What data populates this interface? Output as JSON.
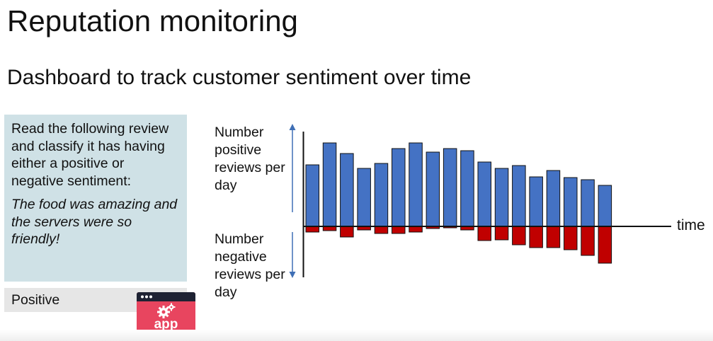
{
  "slide": {
    "title": "Reputation monitoring",
    "subtitle": "Dashboard to track customer sentiment over time"
  },
  "prompt": {
    "instruction": "Read the following review and classify it has having either a positive or negative sentiment:",
    "review": "The food was amazing and the servers were so friendly!"
  },
  "result": {
    "label": "Positive"
  },
  "app_icon": {
    "label": "app",
    "icon": "app-window-gear-icon",
    "color": "#e8455f"
  },
  "chart_data": {
    "type": "bar",
    "positive_axis_label": "Number positive reviews per day",
    "negative_axis_label": "Number negative reviews per day",
    "x_axis_label": "time",
    "series": [
      {
        "values": [
          87,
          118,
          103,
          82,
          89,
          110,
          118,
          105,
          110,
          107,
          91,
          82,
          86,
          70,
          79,
          69,
          66,
          58
        ]
      },
      {
        "values": [
          8,
          6,
          15,
          5,
          10,
          10,
          8,
          3,
          2,
          5,
          20,
          19,
          26,
          30,
          30,
          33,
          41,
          52
        ]
      }
    ],
    "colors": {
      "positive": "#4472c4",
      "negative": "#c00000",
      "axis": "#111111",
      "arrow": "#3f6fb5"
    }
  }
}
